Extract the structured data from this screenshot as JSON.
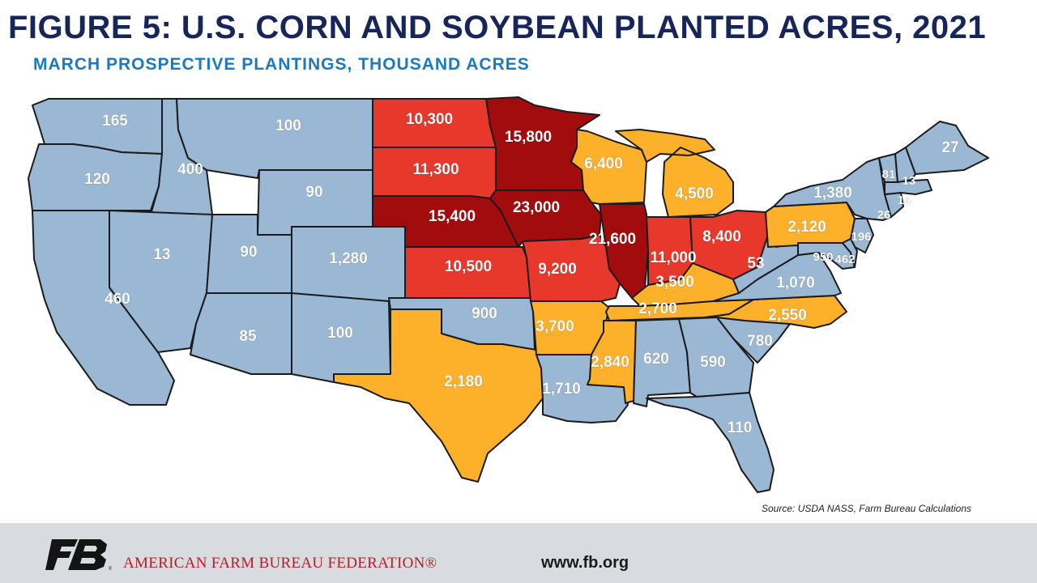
{
  "header": {
    "title": "FIGURE 5: U.S. CORN AND SOYBEAN PLANTED ACRES, 2021",
    "subtitle": "MARCH PROSPECTIVE PLANTINGS, THOUSAND ACRES"
  },
  "map": {
    "colors": {
      "tier_low": "#9ab7d4",
      "tier_mid": "#fdb12b",
      "tier_high": "#e8372b",
      "tier_top": "#a30c0c",
      "borders": "#1b1b1b"
    },
    "states": {
      "WA": "165",
      "OR": "120",
      "CA": "460",
      "ID": "400",
      "NV": "13",
      "MT": "100",
      "WY": "90",
      "UT": "90",
      "CO": "1,280",
      "AZ": "85",
      "NM": "100",
      "ND": "10,300",
      "SD": "11,300",
      "NE": "15,400",
      "KS": "10,500",
      "OK": "900",
      "TX": "2,180",
      "MN": "15,800",
      "IA": "23,000",
      "MO": "9,200",
      "AR": "3,700",
      "LA": "1,710",
      "WI": "6,400",
      "IL": "21,600",
      "MI": "4,500",
      "IN": "11,000",
      "OH": "8,400",
      "KY": "3,500",
      "TN": "2,700",
      "MS": "2,840",
      "AL": "620",
      "GA": "590",
      "FL": "110",
      "SC": "780",
      "NC": "2,550",
      "VA": "1,070",
      "WV": "53",
      "PA": "2,120",
      "NY": "1,380",
      "ME": "27",
      "VT": "81",
      "NH": "13",
      "MA": "14",
      "CT": "26",
      "NJ": "196",
      "MD": "950",
      "DE": "462"
    }
  },
  "source": "Source: USDA NASS, Farm Bureau Calculations",
  "footer": {
    "logo_text": "FB",
    "org_name": "AMERICAN FARM BUREAU FEDERATION®",
    "url": "www.fb.org"
  }
}
